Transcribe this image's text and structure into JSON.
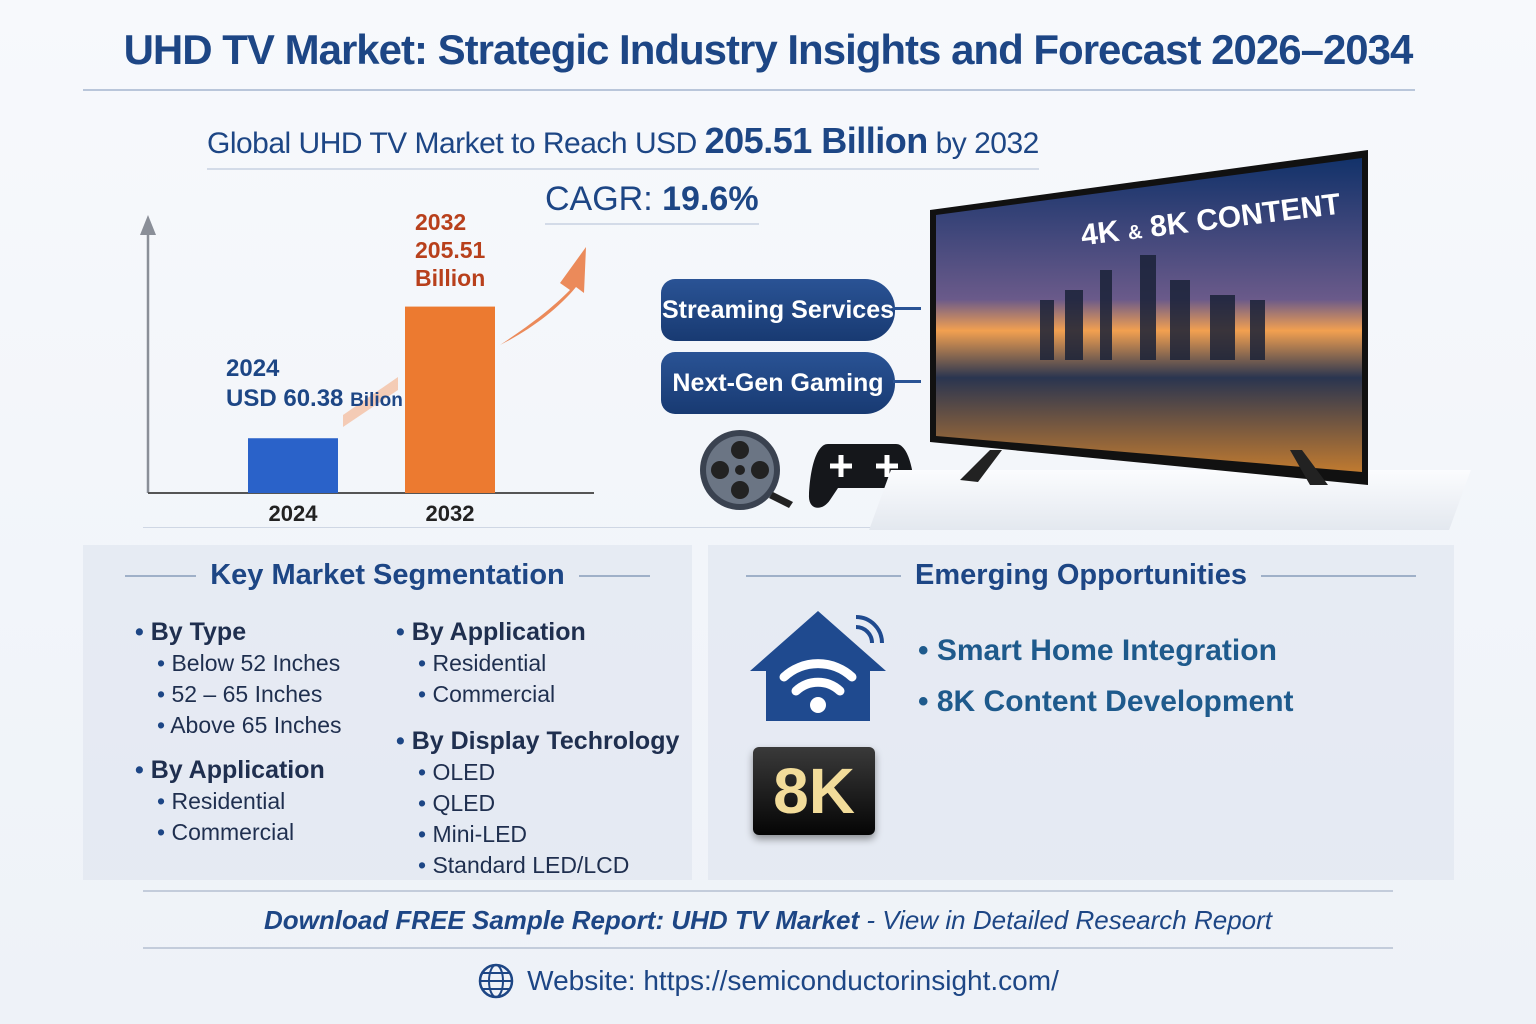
{
  "title": "UHD TV Market: Strategic Industry Insights and Forecast 2026–2034",
  "subtitle": {
    "prefix": "Global UHD TV Market to Reach USD",
    "value": "205.51 Billion",
    "suffix": "by 2032"
  },
  "cagr": {
    "label": "CAGR:",
    "value": "19.6%"
  },
  "chart_data": {
    "type": "bar",
    "categories": [
      "2024",
      "2032"
    ],
    "values": [
      60.38,
      205.51
    ],
    "unit": "USD Billion",
    "colors": [
      "#2a62c9",
      "#ec7a30"
    ],
    "labels": [
      {
        "year": "2024",
        "text": "USD 60.38",
        "unit": "Bilion"
      },
      {
        "year": "2032",
        "text": "205.51",
        "unit": "Billion"
      }
    ],
    "ylim": [
      0,
      260
    ],
    "grid": false,
    "trend_arrow": true
  },
  "drivers": [
    "Streaming Services",
    "Next-Gen Gaming"
  ],
  "tv": {
    "screen_text_a": "4K",
    "screen_text_amp": "&",
    "screen_text_b": "8K CONTENT"
  },
  "icons": {
    "film": "film-reel-icon",
    "gamepad": "gamepad-icon",
    "smart_home": "smart-home-wifi-icon",
    "globe": "globe-icon"
  },
  "segmentation": {
    "heading": "Key Market Segmentation",
    "left": [
      {
        "title": "By Type",
        "items": [
          "Below 52 Inches",
          "52 – 65 Inches",
          "Above 65 Inches"
        ]
      },
      {
        "title": "By Application",
        "items": [
          "Residential",
          "Commercial"
        ]
      }
    ],
    "right": [
      {
        "title": "By Application",
        "items": [
          "Residential",
          "Commercial"
        ]
      },
      {
        "title": "By Display Techrology",
        "items": [
          "OLED",
          "QLED",
          "Mini-LED",
          "Standard LED/LCD"
        ]
      }
    ]
  },
  "opportunities": {
    "heading": "Emerging Opportunities",
    "items": [
      "Smart Home Integration",
      "8K Content Development"
    ],
    "badge": "8K"
  },
  "footer": {
    "download_bold": "Download FREE Sample Report:  UHD TV Market",
    "download_rest": " - View in Detailed Research Report",
    "website": "Website: https://semiconductorinsight.com/"
  }
}
